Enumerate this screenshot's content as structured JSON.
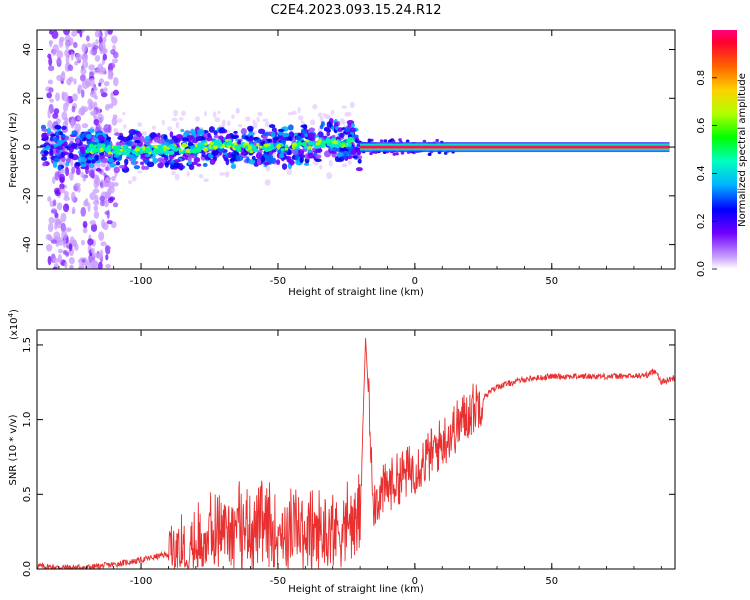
{
  "title": "C2E4.2023.093.15.24.R12",
  "chart_data": [
    {
      "type": "heatmap",
      "xlabel": "Height of straight line (km)",
      "ylabel": "Frequency (Hz)",
      "xlim": [
        -138,
        95
      ],
      "ylim": [
        -50,
        48
      ],
      "x_ticks": [
        -100,
        -50,
        0,
        50
      ],
      "y_ticks": [
        -40,
        -20,
        0,
        20,
        40
      ],
      "colorbar": {
        "label": "Normalized spectral amplitude",
        "range": [
          0,
          1
        ],
        "ticks": [
          "0.0",
          "0.2",
          "0.4",
          "0.6",
          "0.8"
        ]
      },
      "signal_track": [
        {
          "x": -135,
          "freq": 0.0
        },
        {
          "x": -100,
          "freq": -1.5
        },
        {
          "x": -80,
          "freq": -0.5
        },
        {
          "x": -70,
          "freq": 1.5
        },
        {
          "x": -60,
          "freq": -0.5
        },
        {
          "x": -45,
          "freq": 0.5
        },
        {
          "x": -30,
          "freq": 2.0
        },
        {
          "x": -22,
          "freq": 2.0
        },
        {
          "x": -20,
          "freq": -1.5
        },
        {
          "x": -15,
          "freq": 0.0
        },
        {
          "x": 0,
          "freq": 0.0
        },
        {
          "x": 50,
          "freq": 0.0
        },
        {
          "x": 93,
          "freq": 0.0
        }
      ]
    },
    {
      "type": "line",
      "xlabel": "Height of straight line (km)",
      "ylabel": "SNR (10 * v/v)",
      "y_exponent_label": "(x10",
      "y_exponent_power": "4",
      "y_exponent_close": ")",
      "xlim": [
        -138,
        95
      ],
      "ylim": [
        0,
        1.6
      ],
      "x_ticks": [
        -100,
        -50,
        0,
        50
      ],
      "y_ticks": [
        "0.0",
        "0.5",
        "1.0",
        "1.5"
      ],
      "color": "#e83030",
      "series": [
        {
          "x": [
            -138,
            -130,
            -120,
            -110,
            -100,
            -90,
            -80,
            -75,
            -70,
            -65,
            -60,
            -55,
            -50,
            -45,
            -40,
            -35,
            -30,
            -25,
            -20,
            -18,
            -15,
            -10,
            -5,
            0,
            5,
            10,
            15,
            20,
            25,
            30,
            40,
            50,
            60,
            70,
            80,
            85,
            88,
            90,
            95
          ],
          "y": [
            0.02,
            0.01,
            0.01,
            0.03,
            0.06,
            0.1,
            0.16,
            0.22,
            0.28,
            0.3,
            0.28,
            0.27,
            0.26,
            0.26,
            0.25,
            0.24,
            0.26,
            0.3,
            0.35,
            1.55,
            0.45,
            0.55,
            0.62,
            0.68,
            0.75,
            0.85,
            0.95,
            1.05,
            1.15,
            1.22,
            1.27,
            1.29,
            1.29,
            1.29,
            1.29,
            1.3,
            1.33,
            1.25,
            1.28
          ]
        }
      ]
    }
  ]
}
